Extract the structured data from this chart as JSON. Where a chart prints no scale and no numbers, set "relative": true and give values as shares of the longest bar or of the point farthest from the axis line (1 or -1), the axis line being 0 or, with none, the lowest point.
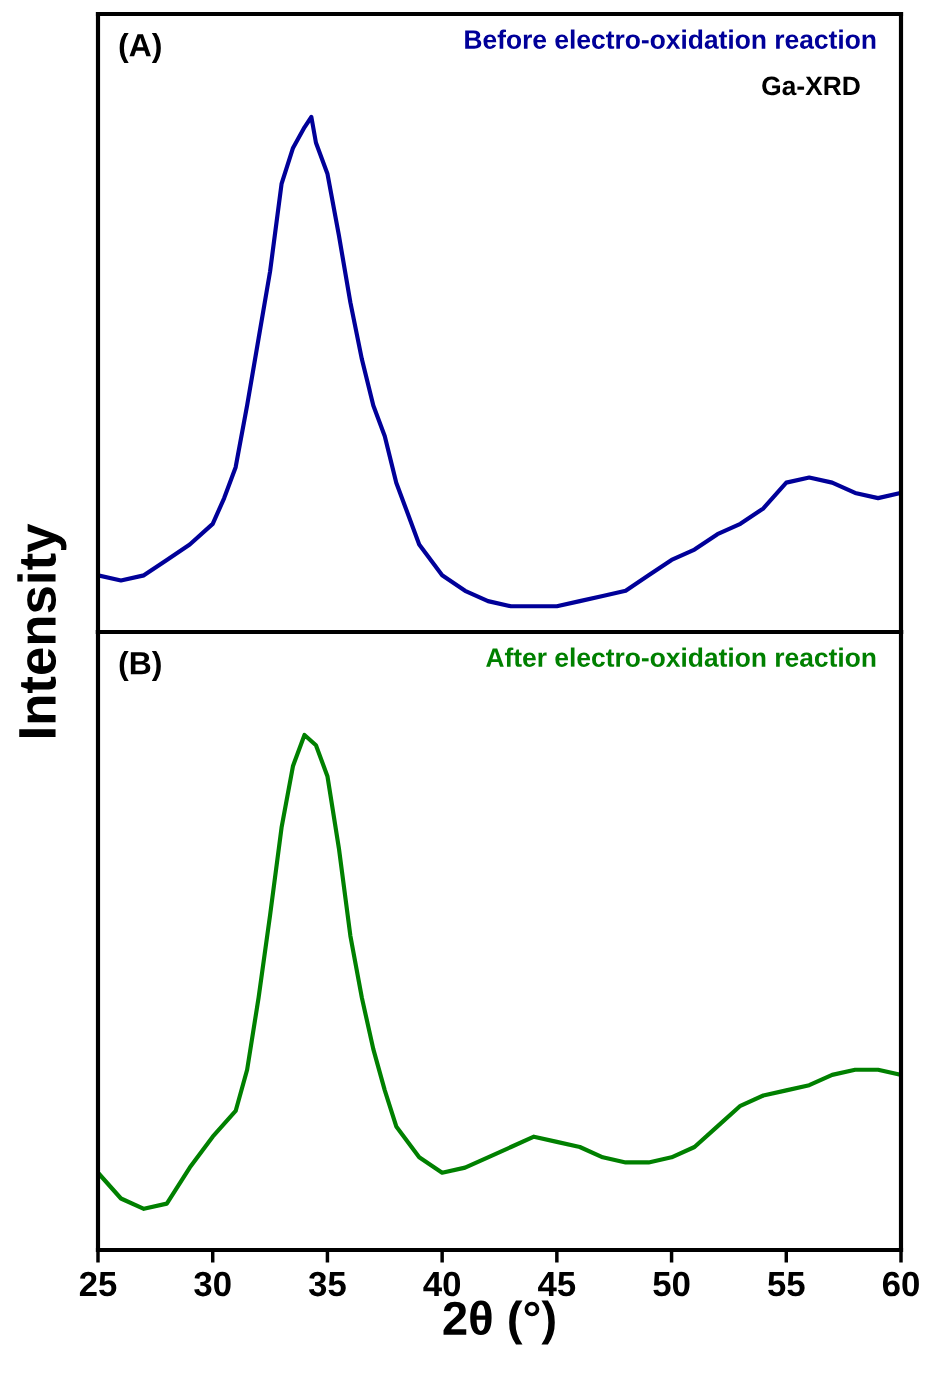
{
  "chart_data": [
    {
      "type": "line",
      "relative": true,
      "ylabel": "Intensity",
      "annotations": [
        "(A)",
        "Ga-XRD"
      ],
      "xlim": [
        25,
        60
      ],
      "xticks": [
        25,
        30,
        35,
        40,
        45,
        50,
        55,
        60
      ],
      "tick_labels": false,
      "grid": false,
      "legend": false,
      "marker": "none",
      "line_style": "solid",
      "series": [
        {
          "name": "Before electro-oxidation reaction",
          "color": "#000099",
          "x": [
            25,
            26,
            27,
            28,
            29,
            30,
            30.5,
            31,
            31.5,
            32,
            32.5,
            33,
            33.5,
            34,
            34.3,
            34.5,
            35,
            35.5,
            36,
            36.5,
            37,
            37.5,
            38,
            38.5,
            39,
            40,
            41,
            42,
            43,
            44,
            45,
            46,
            47,
            48,
            49,
            50,
            51,
            52,
            53,
            54,
            55,
            56,
            57,
            58,
            59,
            60
          ],
          "values": [
            0.11,
            0.1,
            0.11,
            0.14,
            0.17,
            0.21,
            0.26,
            0.32,
            0.44,
            0.57,
            0.7,
            0.87,
            0.94,
            0.98,
            1.0,
            0.95,
            0.89,
            0.77,
            0.64,
            0.53,
            0.44,
            0.38,
            0.29,
            0.23,
            0.17,
            0.11,
            0.08,
            0.06,
            0.05,
            0.05,
            0.05,
            0.06,
            0.07,
            0.08,
            0.11,
            0.14,
            0.16,
            0.19,
            0.21,
            0.24,
            0.29,
            0.3,
            0.29,
            0.27,
            0.26,
            0.27
          ]
        }
      ]
    },
    {
      "type": "line",
      "relative": true,
      "xlabel": "2θ (°)",
      "annotations": [
        "(B)"
      ],
      "xlim": [
        25,
        60
      ],
      "xticks": [
        25,
        30,
        35,
        40,
        45,
        50,
        55,
        60
      ],
      "tick_labels": "x",
      "grid": false,
      "legend": false,
      "marker": "none",
      "line_style": "solid",
      "series": [
        {
          "name": "After electro-oxidation reaction",
          "color": "#008000",
          "x": [
            25,
            26,
            27,
            28,
            29,
            30,
            31,
            31.5,
            32,
            32.5,
            33,
            33.5,
            34,
            34.5,
            35,
            35.5,
            36,
            36.5,
            37,
            37.5,
            38,
            39,
            40,
            41,
            42,
            43,
            44,
            45,
            46,
            47,
            48,
            49,
            50,
            51,
            52,
            53,
            54,
            55,
            56,
            57,
            58,
            59,
            60
          ],
          "values": [
            0.15,
            0.1,
            0.08,
            0.09,
            0.16,
            0.22,
            0.27,
            0.35,
            0.49,
            0.65,
            0.82,
            0.94,
            1.0,
            0.98,
            0.92,
            0.78,
            0.61,
            0.49,
            0.39,
            0.31,
            0.24,
            0.18,
            0.15,
            0.16,
            0.18,
            0.2,
            0.22,
            0.21,
            0.2,
            0.18,
            0.17,
            0.17,
            0.18,
            0.2,
            0.24,
            0.28,
            0.3,
            0.31,
            0.32,
            0.34,
            0.35,
            0.35,
            0.34
          ]
        }
      ]
    }
  ]
}
